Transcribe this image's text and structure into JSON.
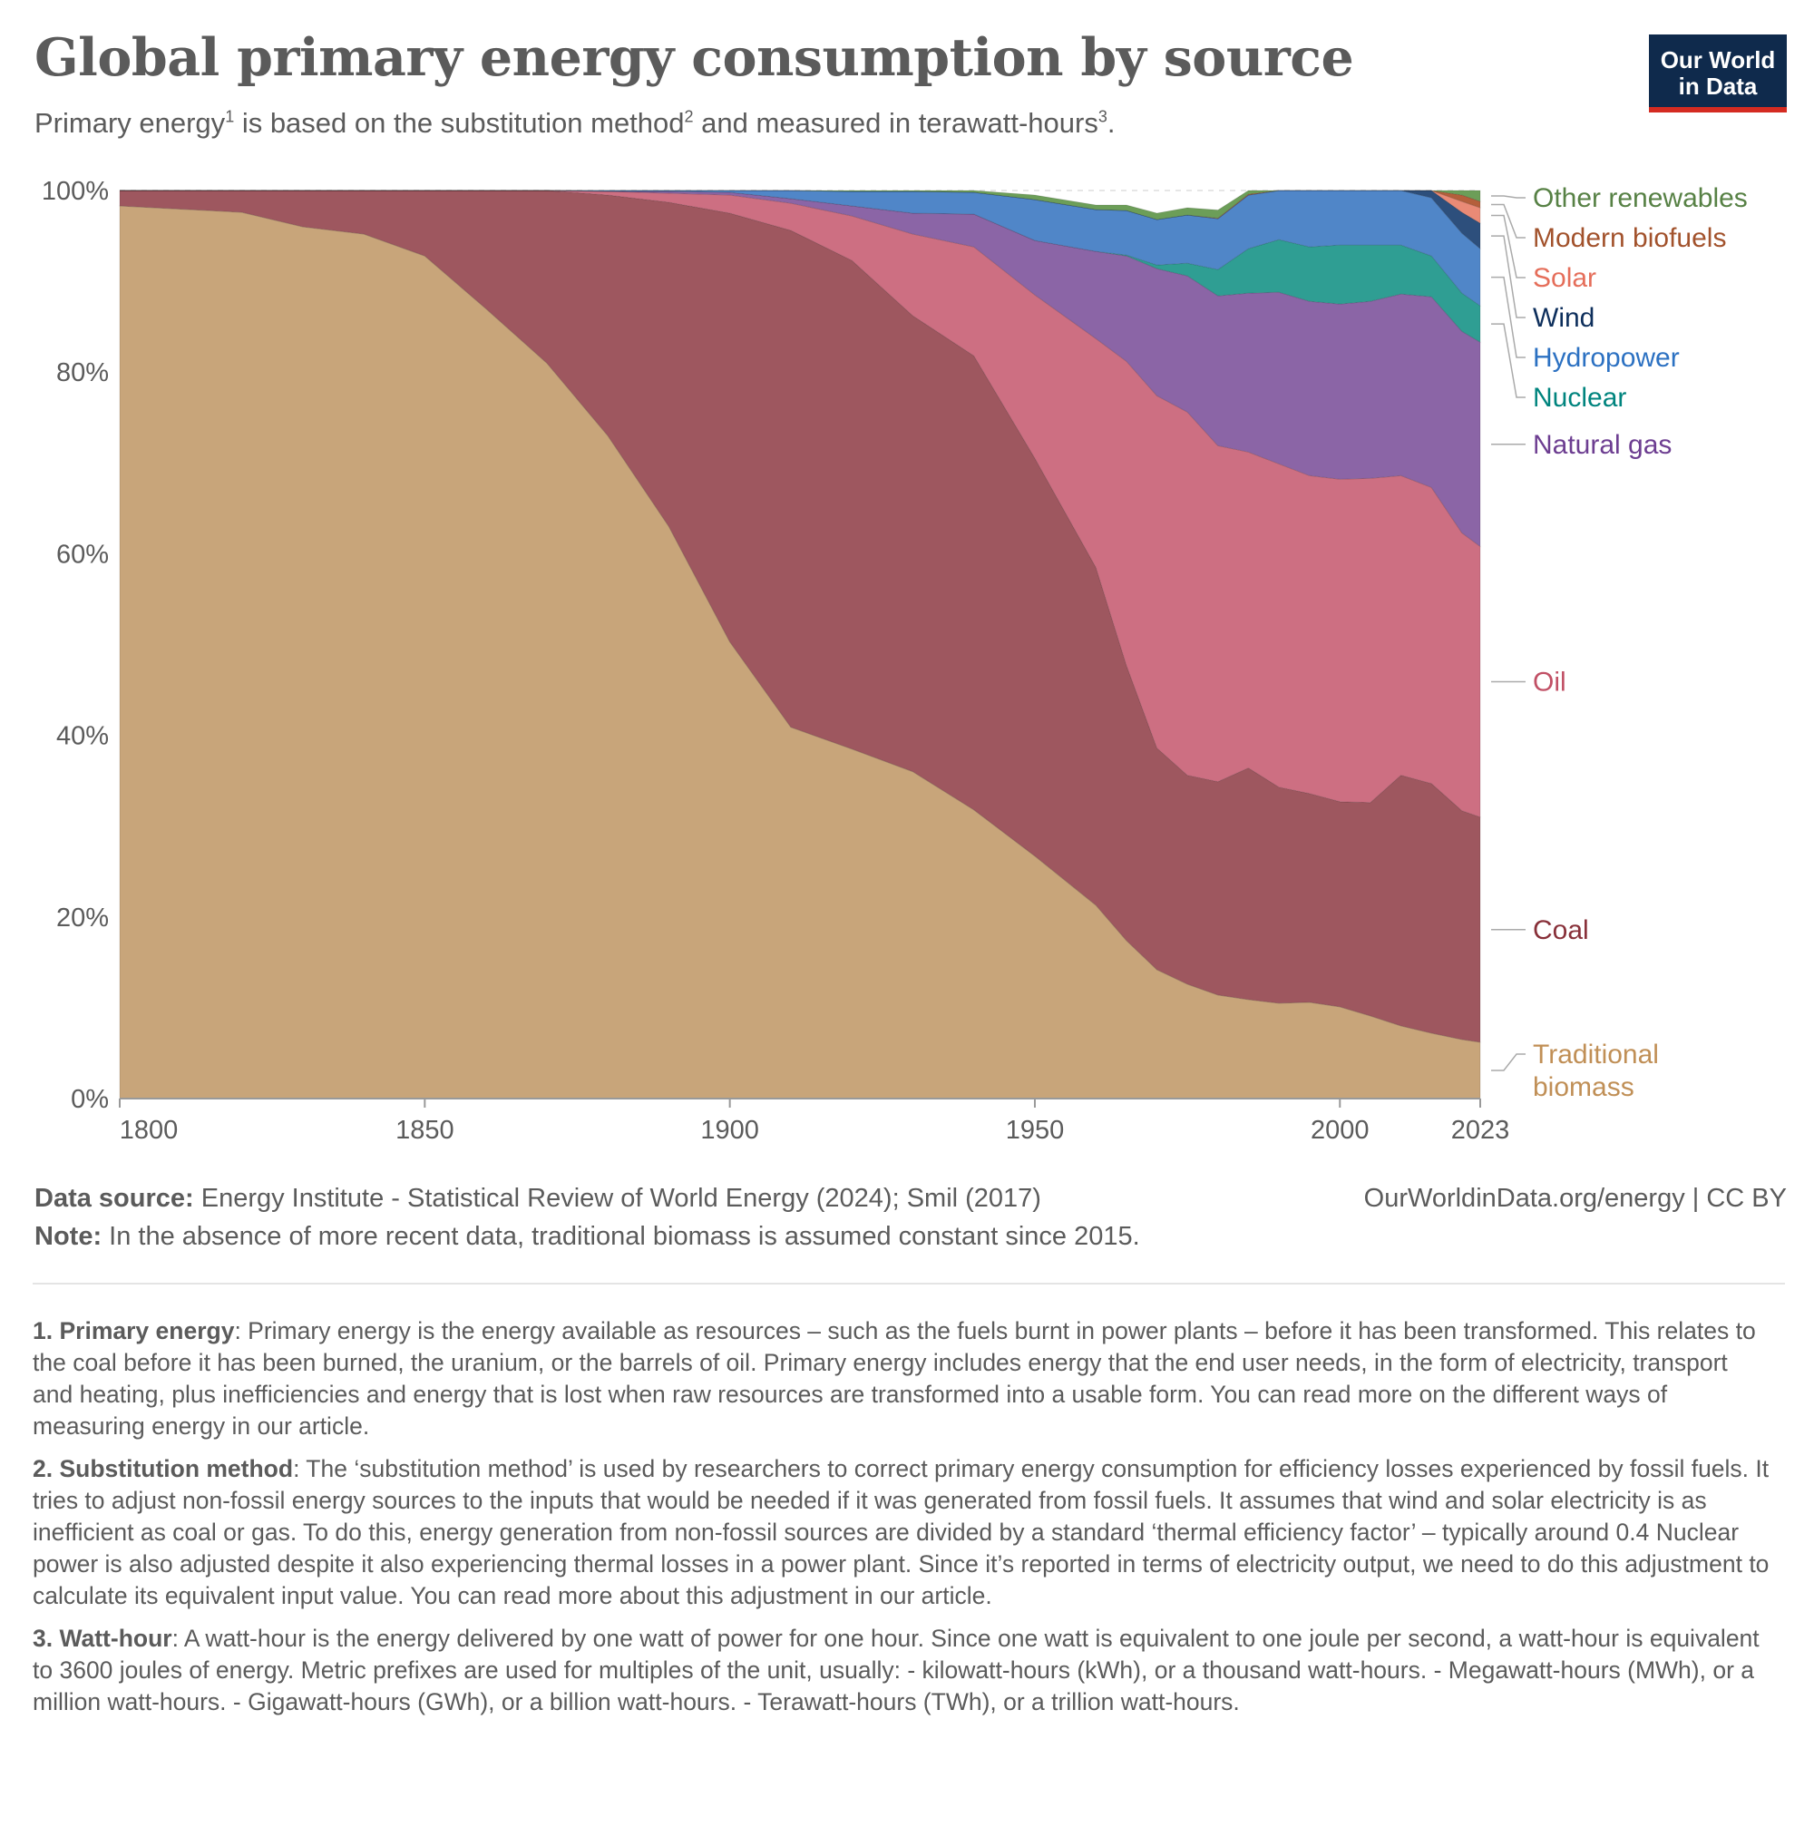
{
  "header": {
    "title": "Global primary energy consumption by source",
    "subtitle_parts": [
      "Primary energy",
      "1",
      " is based on the substitution method",
      "2",
      " and measured in terawatt-hours",
      "3",
      "."
    ],
    "logo_line1": "Our World",
    "logo_line2": "in Data",
    "logo_colors": {
      "background": "#0f2a4c",
      "accent": "#d42b21"
    }
  },
  "chart_data": {
    "type": "area",
    "stacked": true,
    "normalized_percent": true,
    "xlim": [
      1800,
      2023
    ],
    "ylim": [
      0,
      100
    ],
    "x_ticks": [
      "1800",
      "1850",
      "1900",
      "1950",
      "2000",
      "2023"
    ],
    "y_ticks": [
      "0%",
      "20%",
      "40%",
      "60%",
      "80%",
      "100%"
    ],
    "grid": "horizontal dashed",
    "legend": "right, labels at series end",
    "x": [
      1800,
      1820,
      1830,
      1840,
      1850,
      1860,
      1870,
      1880,
      1890,
      1900,
      1910,
      1920,
      1930,
      1940,
      1950,
      1960,
      1965,
      1970,
      1975,
      1980,
      1985,
      1990,
      1995,
      2000,
      2005,
      2010,
      2015,
      2020,
      2023
    ],
    "series": [
      {
        "name": "Traditional biomass",
        "label_lines": [
          "Traditional",
          "biomass"
        ],
        "color": "#c8a57a",
        "text_color": "#c08f56",
        "values": [
          98.3,
          97.6,
          96.0,
          95.2,
          92.8,
          87.0,
          81.0,
          73.0,
          63.0,
          50.3,
          40.9,
          38.5,
          36.0,
          31.8,
          26.7,
          21.3,
          17.4,
          14.2,
          12.6,
          11.4,
          10.9,
          10.5,
          10.6,
          10.1,
          9.1,
          8.0,
          7.2,
          6.5,
          6.2
        ]
      },
      {
        "name": "Coal",
        "label_lines": [
          "Coal"
        ],
        "color": "#9e575f",
        "text_color": "#883039",
        "values": [
          1.7,
          2.4,
          4.0,
          4.8,
          7.2,
          13.0,
          19.0,
          26.5,
          35.7,
          47.2,
          54.7,
          53.8,
          50.2,
          50.0,
          43.8,
          37.2,
          30.3,
          24.4,
          23.0,
          23.5,
          25.5,
          23.8,
          23.0,
          22.6,
          23.5,
          27.6,
          27.5,
          25.2,
          24.8
        ]
      },
      {
        "name": "Oil",
        "label_lines": [
          "Oil"
        ],
        "color": "#cd6f82",
        "text_color": "#c15065",
        "values": [
          0,
          0,
          0,
          0,
          0,
          0,
          0,
          0.4,
          1.0,
          2.0,
          3.0,
          4.9,
          9.0,
          12.0,
          18.0,
          25.2,
          33.5,
          38.8,
          40.0,
          37.0,
          34.8,
          35.6,
          35.0,
          35.5,
          35.7,
          33.0,
          32.6,
          30.6,
          29.8
        ]
      },
      {
        "name": "Natural gas",
        "label_lines": [
          "Natural gas"
        ],
        "color": "#8b65a6",
        "text_color": "#6d3e91",
        "values": [
          0,
          0,
          0,
          0,
          0,
          0,
          0,
          0,
          0.2,
          0.3,
          0.5,
          1.1,
          2.3,
          3.6,
          6.0,
          9.6,
          11.6,
          14.0,
          15.0,
          16.5,
          17.5,
          18.9,
          19.2,
          19.3,
          19.5,
          20.0,
          21.0,
          22.2,
          22.5
        ]
      },
      {
        "name": "Nuclear",
        "label_lines": [
          "Nuclear"
        ],
        "color": "#2f9e93",
        "text_color": "#00847e",
        "values": [
          0,
          0,
          0,
          0,
          0,
          0,
          0,
          0,
          0,
          0,
          0,
          0,
          0,
          0,
          0,
          0,
          0.1,
          0.4,
          1.4,
          2.9,
          4.9,
          5.8,
          6.0,
          6.5,
          6.2,
          5.4,
          4.5,
          4.2,
          4.0
        ]
      },
      {
        "name": "Hydropower",
        "label_lines": [
          "Hydropower"
        ],
        "color": "#5086c8",
        "text_color": "#2c71c2",
        "values": [
          0,
          0,
          0,
          0,
          0,
          0,
          0,
          0.1,
          0.1,
          0.2,
          0.9,
          1.6,
          2.4,
          2.4,
          4.5,
          4.6,
          4.9,
          5.0,
          5.3,
          5.6,
          5.9,
          5.9,
          6.3,
          6.3,
          6.2,
          6.3,
          6.4,
          6.6,
          6.3
        ]
      },
      {
        "name": "Wind",
        "label_lines": [
          "Wind"
        ],
        "color": "#2d4f7c",
        "text_color": "#0e2f5c",
        "values": [
          0,
          0,
          0,
          0,
          0,
          0,
          0,
          0,
          0,
          0,
          0,
          0,
          0,
          0,
          0,
          0,
          0,
          0,
          0,
          0,
          0,
          0,
          0,
          0.02,
          0.1,
          0.4,
          1.1,
          2.3,
          2.8
        ]
      },
      {
        "name": "Solar",
        "label_lines": [
          "Solar"
        ],
        "color": "#e98a76",
        "text_color": "#e56e5a",
        "values": [
          0,
          0,
          0,
          0,
          0,
          0,
          0,
          0,
          0,
          0,
          0,
          0,
          0,
          0,
          0,
          0,
          0,
          0,
          0,
          0,
          0,
          0,
          0,
          0,
          0,
          0.1,
          0.4,
          1.2,
          1.7
        ]
      },
      {
        "name": "Modern biofuels",
        "label_lines": [
          "Modern biofuels"
        ],
        "color": "#b45f3b",
        "text_color": "#a2522c",
        "values": [
          0,
          0,
          0,
          0,
          0,
          0,
          0,
          0,
          0,
          0,
          0,
          0,
          0,
          0,
          0,
          0,
          0,
          0,
          0,
          0.05,
          0.1,
          0.1,
          0.15,
          0.2,
          0.3,
          0.6,
          0.6,
          0.7,
          0.7
        ]
      },
      {
        "name": "Other renewables",
        "label_lines": [
          "Other renewables"
        ],
        "color": "#6c9e58",
        "text_color": "#578145",
        "values": [
          0,
          0,
          0,
          0,
          0,
          0,
          0,
          0,
          0,
          0,
          0,
          0.1,
          0.1,
          0.2,
          0.5,
          0.5,
          0.6,
          0.7,
          0.8,
          0.9,
          1.0,
          1.2,
          1.4,
          1.5,
          1.6,
          1.7,
          1.8,
          1.9,
          2.0
        ]
      }
    ]
  },
  "source": {
    "label": "Data source:",
    "text": "Energy Institute - Statistical Review of World Energy (2024); Smil (2017)",
    "note_label": "Note:",
    "note": "In the absence of more recent data, traditional biomass is assumed constant since 2015.",
    "credit": "OurWorldinData.org/energy | CC BY"
  },
  "footnotes": [
    {
      "label": "1. Primary energy",
      "text": ": Primary energy is the energy available as resources – such as the fuels burnt in power plants – before it has been transformed. This relates to the coal before it has been burned, the uranium, or the barrels of oil. Primary energy includes energy that the end user needs, in the form of electricity, transport and heating, plus inefficiencies and energy that is lost when raw resources are transformed into a usable form. You can read more on the different ways of measuring energy in our article."
    },
    {
      "label": "2. Substitution method",
      "text": ": The ‘substitution method’ is used by researchers to correct primary energy consumption for efficiency losses experienced by fossil fuels. It tries to adjust non-fossil energy sources to the inputs that would be needed if it was generated from fossil fuels. It assumes that wind and solar electricity is as inefficient as coal or gas. To do this, energy generation from non-fossil sources are divided by a standard ‘thermal efficiency factor’ – typically around 0.4 Nuclear power is also adjusted despite it also experiencing thermal losses in a power plant. Since it’s reported in terms of electricity output, we need to do this adjustment to calculate its equivalent input value. You can read more about this adjustment in our article."
    },
    {
      "label": "3. Watt-hour",
      "text": ": A watt-hour is the energy delivered by one watt of power for one hour. Since one watt is equivalent to one joule per second, a watt-hour is equivalent to 3600 joules of energy. Metric prefixes are used for multiples of the unit, usually: - kilowatt-hours (kWh), or a thousand watt-hours. - Megawatt-hours (MWh), or a million watt-hours. - Gigawatt-hours (GWh), or a billion watt-hours. - Terawatt-hours (TWh), or a trillion watt-hours."
    }
  ]
}
